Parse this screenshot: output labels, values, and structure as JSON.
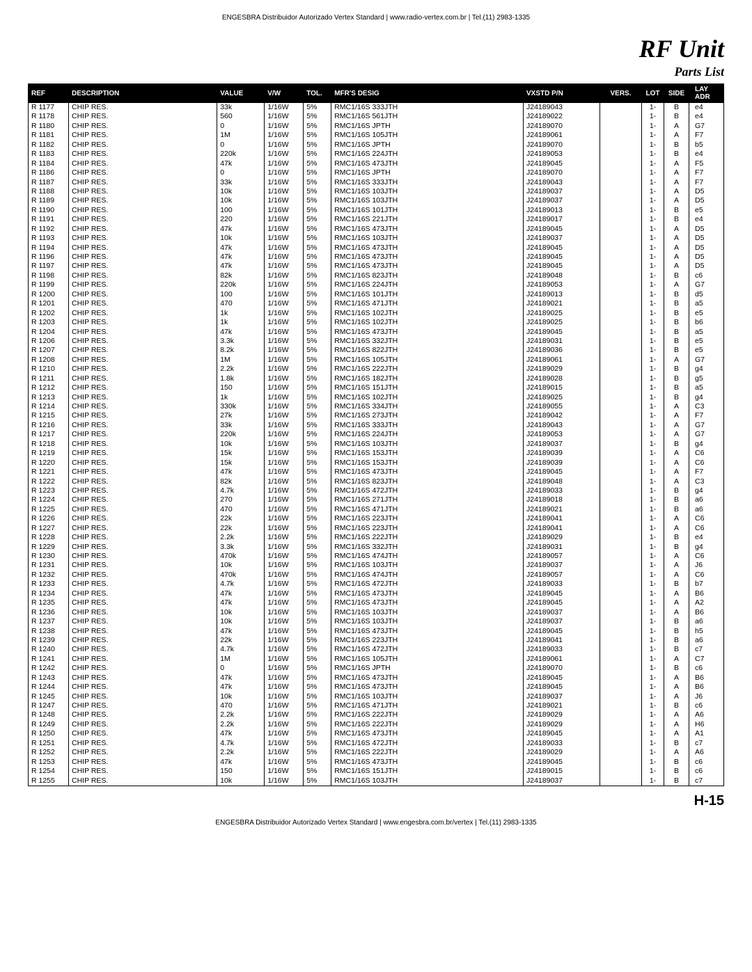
{
  "header_top": "ENGESBRA Distribuidor Autorizado Vertex Standard    |    www.radio-vertex.com.br    |    Tel.(11) 2983-1335",
  "footer_bottom": "ENGESBRA Distribuidor Autorizado Vertex Standard    |    www.engesbra.com.br/vertex    |    Tel.(11) 2983-1335",
  "title": "RF Unit",
  "subtitle": "Parts List",
  "page_number": "H-15",
  "columns": [
    "REF",
    "DESCRIPTION",
    "VALUE",
    "V/W",
    "TOL.",
    "MFR'S DESIG",
    "VXSTD P/N",
    "VERS.",
    "LOT",
    "SIDE",
    "LAY ADR"
  ],
  "rows": [
    [
      "R 1177",
      "CHIP RES.",
      "33k",
      "1/16W",
      "5%",
      "RMC1/16S 333JTH",
      "J24189043",
      "",
      "1-",
      "B",
      "e4"
    ],
    [
      "R 1178",
      "CHIP RES.",
      "560",
      "1/16W",
      "5%",
      "RMC1/16S 561JTH",
      "J24189022",
      "",
      "1-",
      "B",
      "e4"
    ],
    [
      "R 1180",
      "CHIP RES.",
      "0",
      "1/16W",
      "5%",
      "RMC1/16S JPTH",
      "J24189070",
      "",
      "1-",
      "A",
      "G7"
    ],
    [
      "R 1181",
      "CHIP RES.",
      "1M",
      "1/16W",
      "5%",
      "RMC1/16S 105JTH",
      "J24189061",
      "",
      "1-",
      "A",
      "F7"
    ],
    [
      "R 1182",
      "CHIP RES.",
      "0",
      "1/16W",
      "5%",
      "RMC1/16S JPTH",
      "J24189070",
      "",
      "1-",
      "B",
      "b5"
    ],
    [
      "R 1183",
      "CHIP RES.",
      "220k",
      "1/16W",
      "5%",
      "RMC1/16S 224JTH",
      "J24189053",
      "",
      "1-",
      "B",
      "e4"
    ],
    [
      "R 1184",
      "CHIP RES.",
      "47k",
      "1/16W",
      "5%",
      "RMC1/16S 473JTH",
      "J24189045",
      "",
      "1-",
      "A",
      "F5"
    ],
    [
      "R 1186",
      "CHIP RES.",
      "0",
      "1/16W",
      "5%",
      "RMC1/16S JPTH",
      "J24189070",
      "",
      "1-",
      "A",
      "F7"
    ],
    [
      "R 1187",
      "CHIP RES.",
      "33k",
      "1/16W",
      "5%",
      "RMC1/16S 333JTH",
      "J24189043",
      "",
      "1-",
      "A",
      "F7"
    ],
    [
      "R 1188",
      "CHIP RES.",
      "10k",
      "1/16W",
      "5%",
      "RMC1/16S 103JTH",
      "J24189037",
      "",
      "1-",
      "A",
      "D5"
    ],
    [
      "R 1189",
      "CHIP RES.",
      "10k",
      "1/16W",
      "5%",
      "RMC1/16S 103JTH",
      "J24189037",
      "",
      "1-",
      "A",
      "D5"
    ],
    [
      "R 1190",
      "CHIP RES.",
      "100",
      "1/16W",
      "5%",
      "RMC1/16S 101JTH",
      "J24189013",
      "",
      "1-",
      "B",
      "e5"
    ],
    [
      "R 1191",
      "CHIP RES.",
      "220",
      "1/16W",
      "5%",
      "RMC1/16S 221JTH",
      "J24189017",
      "",
      "1-",
      "B",
      "e4"
    ],
    [
      "R 1192",
      "CHIP RES.",
      "47k",
      "1/16W",
      "5%",
      "RMC1/16S 473JTH",
      "J24189045",
      "",
      "1-",
      "A",
      "D5"
    ],
    [
      "R 1193",
      "CHIP RES.",
      "10k",
      "1/16W",
      "5%",
      "RMC1/16S 103JTH",
      "J24189037",
      "",
      "1-",
      "A",
      "D5"
    ],
    [
      "R 1194",
      "CHIP RES.",
      "47k",
      "1/16W",
      "5%",
      "RMC1/16S 473JTH",
      "J24189045",
      "",
      "1-",
      "A",
      "D5"
    ],
    [
      "R 1196",
      "CHIP RES.",
      "47k",
      "1/16W",
      "5%",
      "RMC1/16S 473JTH",
      "J24189045",
      "",
      "1-",
      "A",
      "D5"
    ],
    [
      "R 1197",
      "CHIP RES.",
      "47k",
      "1/16W",
      "5%",
      "RMC1/16S 473JTH",
      "J24189045",
      "",
      "1-",
      "A",
      "D5"
    ],
    [
      "R 1198",
      "CHIP RES.",
      "82k",
      "1/16W",
      "5%",
      "RMC1/16S 823JTH",
      "J24189048",
      "",
      "1-",
      "B",
      "c6"
    ],
    [
      "R 1199",
      "CHIP RES.",
      "220k",
      "1/16W",
      "5%",
      "RMC1/16S 224JTH",
      "J24189053",
      "",
      "1-",
      "A",
      "G7"
    ],
    [
      "R 1200",
      "CHIP RES.",
      "100",
      "1/16W",
      "5%",
      "RMC1/16S 101JTH",
      "J24189013",
      "",
      "1-",
      "B",
      "d5"
    ],
    [
      "R 1201",
      "CHIP RES.",
      "470",
      "1/16W",
      "5%",
      "RMC1/16S 471JTH",
      "J24189021",
      "",
      "1-",
      "B",
      "a5"
    ],
    [
      "R 1202",
      "CHIP RES.",
      "1k",
      "1/16W",
      "5%",
      "RMC1/16S 102JTH",
      "J24189025",
      "",
      "1-",
      "B",
      "e5"
    ],
    [
      "R 1203",
      "CHIP RES.",
      "1k",
      "1/16W",
      "5%",
      "RMC1/16S 102JTH",
      "J24189025",
      "",
      "1-",
      "B",
      "b6"
    ],
    [
      "R 1204",
      "CHIP RES.",
      "47k",
      "1/16W",
      "5%",
      "RMC1/16S 473JTH",
      "J24189045",
      "",
      "1-",
      "B",
      "a5"
    ],
    [
      "R 1206",
      "CHIP RES.",
      "3.3k",
      "1/16W",
      "5%",
      "RMC1/16S 332JTH",
      "J24189031",
      "",
      "1-",
      "B",
      "e5"
    ],
    [
      "R 1207",
      "CHIP RES.",
      "8.2k",
      "1/16W",
      "5%",
      "RMC1/16S 822JTH",
      "J24189036",
      "",
      "1-",
      "B",
      "e5"
    ],
    [
      "R 1208",
      "CHIP RES.",
      "1M",
      "1/16W",
      "5%",
      "RMC1/16S 105JTH",
      "J24189061",
      "",
      "1-",
      "A",
      "G7"
    ],
    [
      "R 1210",
      "CHIP RES.",
      "2.2k",
      "1/16W",
      "5%",
      "RMC1/16S 222JTH",
      "J24189029",
      "",
      "1-",
      "B",
      "g4"
    ],
    [
      "R 1211",
      "CHIP RES.",
      "1.8k",
      "1/16W",
      "5%",
      "RMC1/16S 182JTH",
      "J24189028",
      "",
      "1-",
      "B",
      "g5"
    ],
    [
      "R 1212",
      "CHIP RES.",
      "150",
      "1/16W",
      "5%",
      "RMC1/16S 151JTH",
      "J24189015",
      "",
      "1-",
      "B",
      "a5"
    ],
    [
      "R 1213",
      "CHIP RES.",
      "1k",
      "1/16W",
      "5%",
      "RMC1/16S 102JTH",
      "J24189025",
      "",
      "1-",
      "B",
      "g4"
    ],
    [
      "R 1214",
      "CHIP RES.",
      "330k",
      "1/16W",
      "5%",
      "RMC1/16S 334JTH",
      "J24189055",
      "",
      "1-",
      "A",
      "C3"
    ],
    [
      "R 1215",
      "CHIP RES.",
      "27k",
      "1/16W",
      "5%",
      "RMC1/16S 273JTH",
      "J24189042",
      "",
      "1-",
      "A",
      "F7"
    ],
    [
      "R 1216",
      "CHIP RES.",
      "33k",
      "1/16W",
      "5%",
      "RMC1/16S 333JTH",
      "J24189043",
      "",
      "1-",
      "A",
      "G7"
    ],
    [
      "R 1217",
      "CHIP RES.",
      "220k",
      "1/16W",
      "5%",
      "RMC1/16S 224JTH",
      "J24189053",
      "",
      "1-",
      "A",
      "G7"
    ],
    [
      "R 1218",
      "CHIP RES.",
      "10k",
      "1/16W",
      "5%",
      "RMC1/16S 103JTH",
      "J24189037",
      "",
      "1-",
      "B",
      "g4"
    ],
    [
      "R 1219",
      "CHIP RES.",
      "15k",
      "1/16W",
      "5%",
      "RMC1/16S 153JTH",
      "J24189039",
      "",
      "1-",
      "A",
      "C6"
    ],
    [
      "R 1220",
      "CHIP RES.",
      "15k",
      "1/16W",
      "5%",
      "RMC1/16S 153JTH",
      "J24189039",
      "",
      "1-",
      "A",
      "C6"
    ],
    [
      "R 1221",
      "CHIP RES.",
      "47k",
      "1/16W",
      "5%",
      "RMC1/16S 473JTH",
      "J24189045",
      "",
      "1-",
      "A",
      "F7"
    ],
    [
      "R 1222",
      "CHIP RES.",
      "82k",
      "1/16W",
      "5%",
      "RMC1/16S 823JTH",
      "J24189048",
      "",
      "1-",
      "A",
      "C3"
    ],
    [
      "R 1223",
      "CHIP RES.",
      "4.7k",
      "1/16W",
      "5%",
      "RMC1/16S 472JTH",
      "J24189033",
      "",
      "1-",
      "B",
      "g4"
    ],
    [
      "R 1224",
      "CHIP RES.",
      "270",
      "1/16W",
      "5%",
      "RMC1/16S 271JTH",
      "J24189018",
      "",
      "1-",
      "B",
      "a6"
    ],
    [
      "R 1225",
      "CHIP RES.",
      "470",
      "1/16W",
      "5%",
      "RMC1/16S 471JTH",
      "J24189021",
      "",
      "1-",
      "B",
      "a6"
    ],
    [
      "R 1226",
      "CHIP RES.",
      "22k",
      "1/16W",
      "5%",
      "RMC1/16S 223JTH",
      "J24189041",
      "",
      "1-",
      "A",
      "C6"
    ],
    [
      "R 1227",
      "CHIP RES.",
      "22k",
      "1/16W",
      "5%",
      "RMC1/16S 223JTH",
      "J24189041",
      "",
      "1-",
      "A",
      "C6"
    ],
    [
      "R 1228",
      "CHIP RES.",
      "2.2k",
      "1/16W",
      "5%",
      "RMC1/16S 222JTH",
      "J24189029",
      "",
      "1-",
      "B",
      "e4"
    ],
    [
      "R 1229",
      "CHIP RES.",
      "3.3k",
      "1/16W",
      "5%",
      "RMC1/16S 332JTH",
      "J24189031",
      "",
      "1-",
      "B",
      "g4"
    ],
    [
      "R 1230",
      "CHIP RES.",
      "470k",
      "1/16W",
      "5%",
      "RMC1/16S 474JTH",
      "J24189057",
      "",
      "1-",
      "A",
      "C6"
    ],
    [
      "R 1231",
      "CHIP RES.",
      "10k",
      "1/16W",
      "5%",
      "RMC1/16S 103JTH",
      "J24189037",
      "",
      "1-",
      "A",
      "J6"
    ],
    [
      "R 1232",
      "CHIP RES.",
      "470k",
      "1/16W",
      "5%",
      "RMC1/16S 474JTH",
      "J24189057",
      "",
      "1-",
      "A",
      "C6"
    ],
    [
      "R 1233",
      "CHIP RES.",
      "4.7k",
      "1/16W",
      "5%",
      "RMC1/16S 472JTH",
      "J24189033",
      "",
      "1-",
      "B",
      "b7"
    ],
    [
      "R 1234",
      "CHIP RES.",
      "47k",
      "1/16W",
      "5%",
      "RMC1/16S 473JTH",
      "J24189045",
      "",
      "1-",
      "A",
      "B6"
    ],
    [
      "R 1235",
      "CHIP RES.",
      "47k",
      "1/16W",
      "5%",
      "RMC1/16S 473JTH",
      "J24189045",
      "",
      "1-",
      "A",
      "A2"
    ],
    [
      "R 1236",
      "CHIP RES.",
      "10k",
      "1/16W",
      "5%",
      "RMC1/16S 103JTH",
      "J24189037",
      "",
      "1-",
      "A",
      "B6"
    ],
    [
      "R 1237",
      "CHIP RES.",
      "10k",
      "1/16W",
      "5%",
      "RMC1/16S 103JTH",
      "J24189037",
      "",
      "1-",
      "B",
      "a6"
    ],
    [
      "R 1238",
      "CHIP RES.",
      "47k",
      "1/16W",
      "5%",
      "RMC1/16S 473JTH",
      "J24189045",
      "",
      "1-",
      "B",
      "h5"
    ],
    [
      "R 1239",
      "CHIP RES.",
      "22k",
      "1/16W",
      "5%",
      "RMC1/16S 223JTH",
      "J24189041",
      "",
      "1-",
      "B",
      "a6"
    ],
    [
      "R 1240",
      "CHIP RES.",
      "4.7k",
      "1/16W",
      "5%",
      "RMC1/16S 472JTH",
      "J24189033",
      "",
      "1-",
      "B",
      "c7"
    ],
    [
      "R 1241",
      "CHIP RES.",
      "1M",
      "1/16W",
      "5%",
      "RMC1/16S 105JTH",
      "J24189061",
      "",
      "1-",
      "A",
      "C7"
    ],
    [
      "R 1242",
      "CHIP RES.",
      "0",
      "1/16W",
      "5%",
      "RMC1/16S JPTH",
      "J24189070",
      "",
      "1-",
      "B",
      "c6"
    ],
    [
      "R 1243",
      "CHIP RES.",
      "47k",
      "1/16W",
      "5%",
      "RMC1/16S 473JTH",
      "J24189045",
      "",
      "1-",
      "A",
      "B6"
    ],
    [
      "R 1244",
      "CHIP RES.",
      "47k",
      "1/16W",
      "5%",
      "RMC1/16S 473JTH",
      "J24189045",
      "",
      "1-",
      "A",
      "B6"
    ],
    [
      "R 1245",
      "CHIP RES.",
      "10k",
      "1/16W",
      "5%",
      "RMC1/16S 103JTH",
      "J24189037",
      "",
      "1-",
      "A",
      "J6"
    ],
    [
      "R 1247",
      "CHIP RES.",
      "470",
      "1/16W",
      "5%",
      "RMC1/16S 471JTH",
      "J24189021",
      "",
      "1-",
      "B",
      "c6"
    ],
    [
      "R 1248",
      "CHIP RES.",
      "2.2k",
      "1/16W",
      "5%",
      "RMC1/16S 222JTH",
      "J24189029",
      "",
      "1-",
      "A",
      "A6"
    ],
    [
      "R 1249",
      "CHIP RES.",
      "2.2k",
      "1/16W",
      "5%",
      "RMC1/16S 222JTH",
      "J24189029",
      "",
      "1-",
      "A",
      "H6"
    ],
    [
      "R 1250",
      "CHIP RES.",
      "47k",
      "1/16W",
      "5%",
      "RMC1/16S 473JTH",
      "J24189045",
      "",
      "1-",
      "A",
      "A1"
    ],
    [
      "R 1251",
      "CHIP RES.",
      "4.7k",
      "1/16W",
      "5%",
      "RMC1/16S 472JTH",
      "J24189033",
      "",
      "1-",
      "B",
      "c7"
    ],
    [
      "R 1252",
      "CHIP RES.",
      "2.2k",
      "1/16W",
      "5%",
      "RMC1/16S 222JTH",
      "J24189029",
      "",
      "1-",
      "A",
      "A6"
    ],
    [
      "R 1253",
      "CHIP RES.",
      "47k",
      "1/16W",
      "5%",
      "RMC1/16S 473JTH",
      "J24189045",
      "",
      "1-",
      "B",
      "c6"
    ],
    [
      "R 1254",
      "CHIP RES.",
      "150",
      "1/16W",
      "5%",
      "RMC1/16S 151JTH",
      "J24189015",
      "",
      "1-",
      "B",
      "c6"
    ],
    [
      "R 1255",
      "CHIP RES.",
      "10k",
      "1/16W",
      "5%",
      "RMC1/16S 103JTH",
      "J24189037",
      "",
      "1-",
      "B",
      "c7"
    ]
  ]
}
